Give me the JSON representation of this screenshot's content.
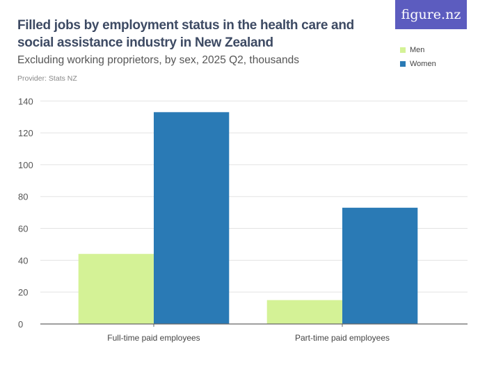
{
  "header": {
    "title": "Filled jobs by employment status in the health care and social assistance industry in New Zealand",
    "subtitle": "Excluding working proprietors, by sex, 2025 Q2, thousands",
    "provider": "Provider: Stats NZ",
    "logo": "figure.nz"
  },
  "chart_data": {
    "type": "bar",
    "categories": [
      "Full-time paid employees",
      "Part-time paid employees"
    ],
    "series": [
      {
        "name": "Men",
        "color": "#d4f296",
        "values": [
          44,
          15
        ]
      },
      {
        "name": "Women",
        "color": "#2a7ab5",
        "values": [
          133,
          73
        ]
      }
    ],
    "ylim": [
      0,
      140
    ],
    "yticks": [
      0,
      20,
      40,
      60,
      80,
      100,
      120,
      140
    ],
    "grid": true,
    "legend": "top-right"
  }
}
